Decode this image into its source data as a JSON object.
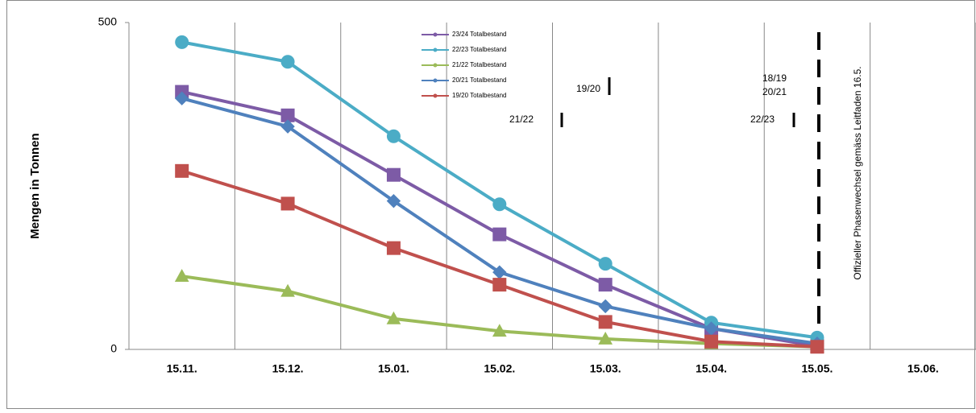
{
  "chart_data": {
    "type": "line",
    "y_label": "Mengen in Tonnen",
    "categories": [
      "15.11.",
      "15.12.",
      "15.01.",
      "15.02.",
      "15.03.",
      "15.04.",
      "15.05.",
      "15.06."
    ],
    "ylim": [
      0,
      500
    ],
    "yticks": [
      0,
      500
    ],
    "grid": true,
    "legend": "top",
    "series": [
      {
        "name": "23/24 Totalbestand",
        "color": "#7d5ba6",
        "marker": "square",
        "values": [
          394,
          358,
          267,
          176,
          99,
          32,
          5,
          null
        ]
      },
      {
        "name": "22/23 Totalbestand",
        "color": "#4bacc6",
        "marker": "circle",
        "values": [
          470,
          440,
          326,
          222,
          131,
          41,
          18,
          null
        ]
      },
      {
        "name": "21/22 Totalbestand",
        "color": "#9bbb59",
        "marker": "triangle",
        "values": [
          112,
          89,
          47,
          28,
          16,
          9,
          4,
          null
        ]
      },
      {
        "name": "20/21 Totalbestand",
        "color": "#4f81bd",
        "marker": "diamond",
        "values": [
          384,
          341,
          227,
          118,
          66,
          32,
          9,
          null
        ]
      },
      {
        "name": "19/20 Totalbestand",
        "color": "#c0504d",
        "marker": "square",
        "values": [
          273,
          223,
          155,
          99,
          42,
          12,
          4,
          null
        ]
      }
    ],
    "annotations": [
      "21/22",
      "19/20",
      "18/19",
      "20/21",
      "22/23",
      "Offizieller Phasenwechsel gemäss Leitfaden 16.5."
    ]
  }
}
